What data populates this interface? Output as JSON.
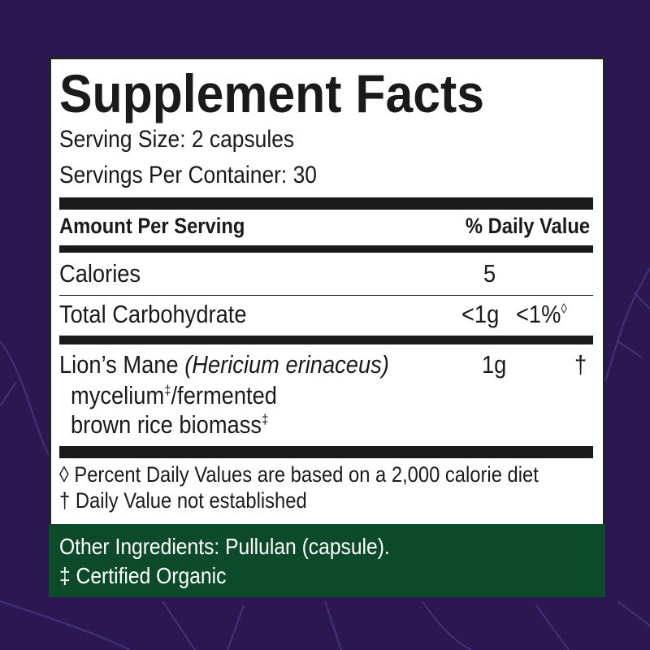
{
  "colors": {
    "background": "#2b1852",
    "panel": "#ffffff",
    "ingredients_band": "#0d4a2c"
  },
  "title": "Supplement Facts",
  "serving_size": "Serving Size: 2 capsules",
  "servings_per_container": "Servings Per Container: 30",
  "header": {
    "amount": "Amount Per Serving",
    "dv": "% Daily Value"
  },
  "rows": [
    {
      "name": "Calories",
      "amount": "5",
      "dv": ""
    },
    {
      "name": "Total Carbohydrate",
      "amount": "<1g",
      "dv": "<1%",
      "dv_mark": "◊"
    },
    {
      "name": "Lion’s Mane",
      "latin": "(Hericium erinaceus)",
      "line2": "mycelium",
      "line2b": "/fermented",
      "line3": "brown rice biomass",
      "mark": "‡",
      "amount": "1g",
      "dv": "†"
    }
  ],
  "footnotes": [
    "◊ Percent Daily Values are based on a 2,000 calorie diet",
    "† Daily Value not established"
  ],
  "other_ingredients": "Other Ingredients: Pullulan (capsule).",
  "organic_note": "‡ Certified Organic"
}
